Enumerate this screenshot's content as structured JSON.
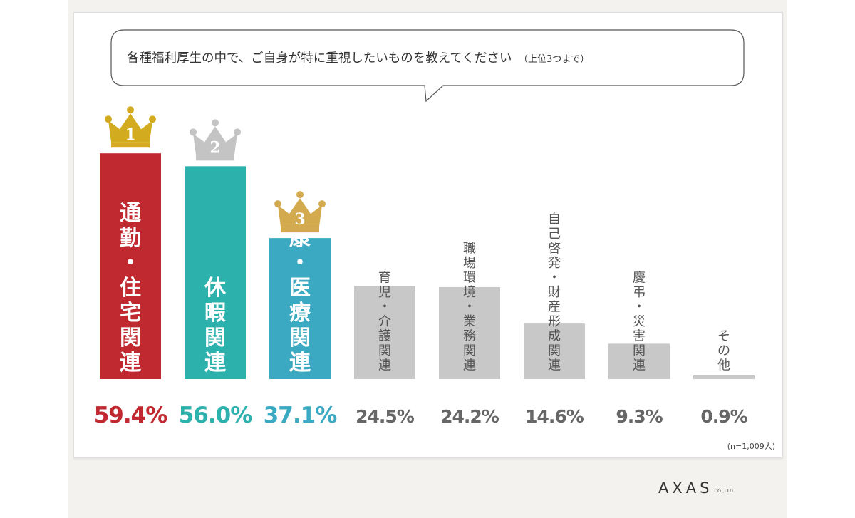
{
  "chart_data": {
    "type": "bar",
    "title": "各種福利厚生の中で、ご自身が特に重視したいものを教えてください",
    "title_suffix": "（上位3つまで）",
    "categories": [
      "通勤・住宅関連",
      "休暇関連",
      "健康・医療関連",
      "育児・介護関連",
      "職場環境・業務関連",
      "自己啓発・財産形成関連",
      "慶弔・災害関連",
      "その他"
    ],
    "values": [
      59.4,
      56.0,
      37.1,
      24.5,
      24.2,
      14.6,
      9.3,
      0.9
    ],
    "value_labels": [
      "59.4%",
      "56.0%",
      "37.1%",
      "24.5%",
      "24.2%",
      "14.6%",
      "9.3%",
      "0.9%"
    ],
    "ranks": [
      "1",
      "2",
      "3"
    ],
    "note": "(n=1,009人)",
    "ylim": [
      0,
      65
    ],
    "grid": false,
    "colors": {
      "rank1": "#c0292f",
      "rank2": "#2cb1ad",
      "rank3": "#3ba9c1",
      "other_bar": "#c8c8c8",
      "other_text": "#555555",
      "other_value": "#666666",
      "crown1": "#d2ac1e",
      "crown2": "#c4c4c4",
      "crown3": "#d3aa4e"
    }
  },
  "logo": {
    "main": "AXAS",
    "sub": "CO.,LTD."
  }
}
